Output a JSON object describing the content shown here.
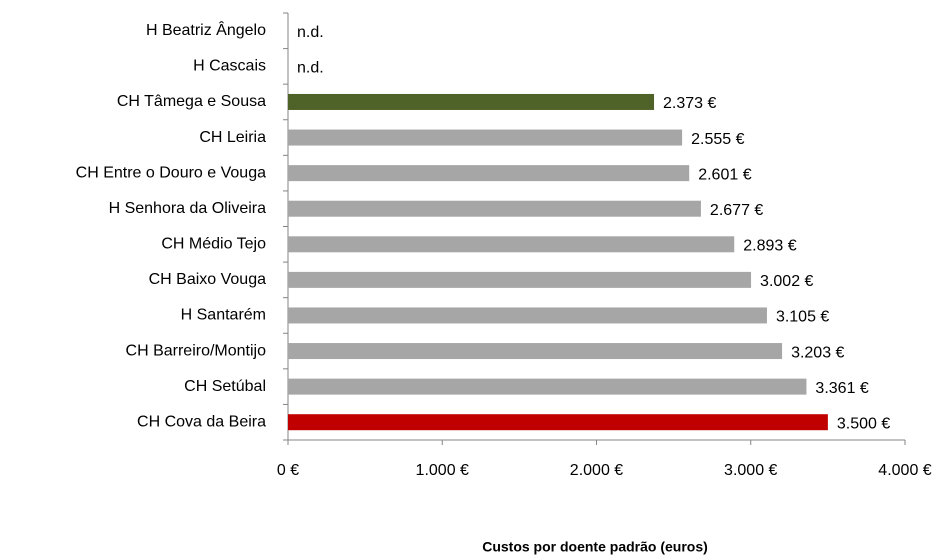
{
  "chart_data": {
    "type": "bar",
    "orientation": "horizontal",
    "categories": [
      "H Beatriz Ângelo",
      "H Cascais",
      "CH Tâmega e Sousa",
      "CH Leiria",
      "CH Entre o Douro e Vouga",
      "H Senhora da Oliveira",
      "CH Médio Tejo",
      "CH Baixo Vouga",
      "H Santarém",
      "CH Barreiro/Montijo",
      "CH Setúbal",
      "CH Cova da Beira"
    ],
    "values": [
      null,
      null,
      2373,
      2555,
      2601,
      2677,
      2893,
      3002,
      3105,
      3203,
      3361,
      3500
    ],
    "value_labels": [
      "n.d.",
      "n.d.",
      "2.373 €",
      "2.555 €",
      "2.601 €",
      "2.677 €",
      "2.893 €",
      "3.002 €",
      "3.105 €",
      "3.203 €",
      "3.361 €",
      "3.500 €"
    ],
    "colors": [
      "#a6a6a6",
      "#a6a6a6",
      "#4f6228",
      "#a6a6a6",
      "#a6a6a6",
      "#a6a6a6",
      "#a6a6a6",
      "#a6a6a6",
      "#a6a6a6",
      "#a6a6a6",
      "#a6a6a6",
      "#c00000"
    ],
    "xlim": [
      0,
      4000
    ],
    "xticks": [
      {
        "value": 0,
        "label": "0 €"
      },
      {
        "value": 1000,
        "label": "1.000 €"
      },
      {
        "value": 2000,
        "label": "2.000 €"
      },
      {
        "value": 3000,
        "label": "3.000 €"
      },
      {
        "value": 4000,
        "label": "4.000 €"
      }
    ],
    "x_label": "Custos por doente padrão (euros)"
  }
}
